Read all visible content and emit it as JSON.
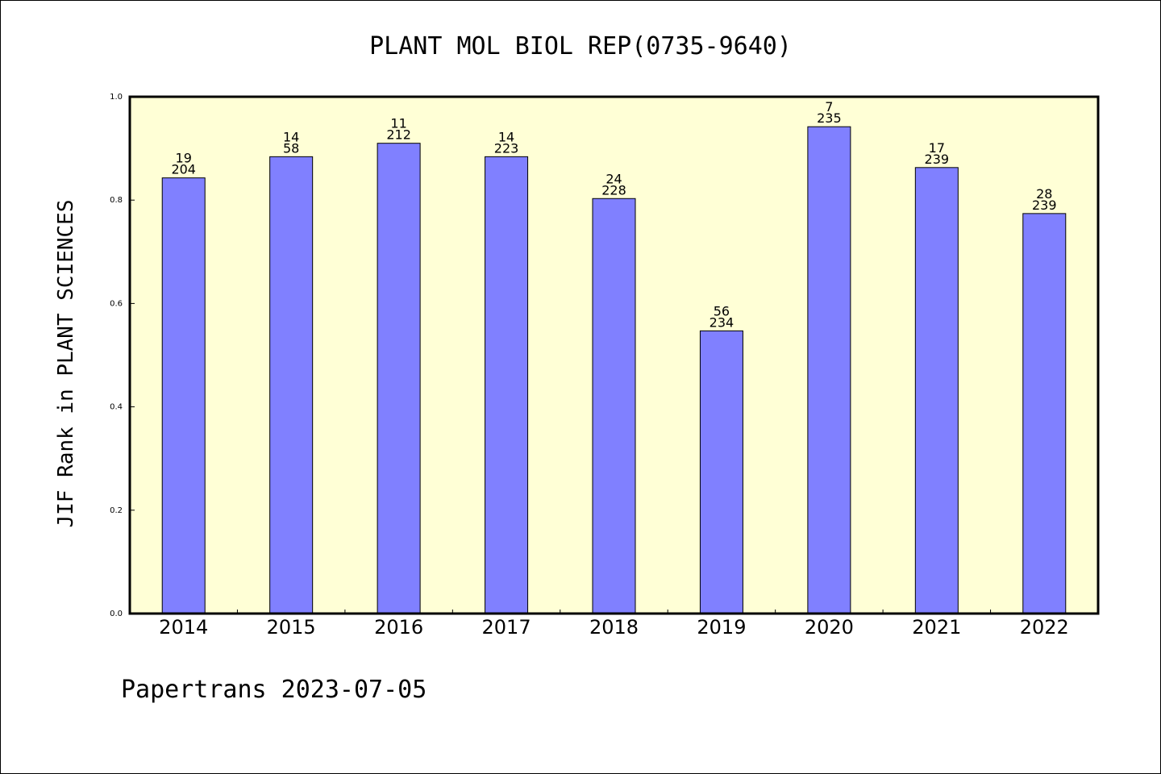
{
  "chart_data": {
    "type": "bar",
    "title": "PLANT MOL BIOL REP(0735-9640)",
    "ylabel": "JIF Rank in PLANT SCIENCES",
    "xlabel": "",
    "ylim": [
      0,
      1.0
    ],
    "yticks": [
      "0.0",
      "0.2",
      "0.4",
      "0.6",
      "0.8",
      "1.0"
    ],
    "grid": false,
    "categories": [
      "2014",
      "2015",
      "2016",
      "2017",
      "2018",
      "2019",
      "2020",
      "2021",
      "2022"
    ],
    "values": [
      0.843,
      0.884,
      0.91,
      0.884,
      0.803,
      0.547,
      0.942,
      0.863,
      0.774
    ],
    "ranks": [
      "19",
      "14",
      "11",
      "14",
      "24",
      "56",
      "7",
      "17",
      "28"
    ],
    "totals": [
      "204",
      "58",
      "212",
      "223",
      "228",
      "234",
      "235",
      "239",
      "239"
    ],
    "colors": {
      "bar": "#8080ff",
      "plot_bg": "#ffffd6"
    }
  },
  "footer": "Papertrans 2023-07-05"
}
